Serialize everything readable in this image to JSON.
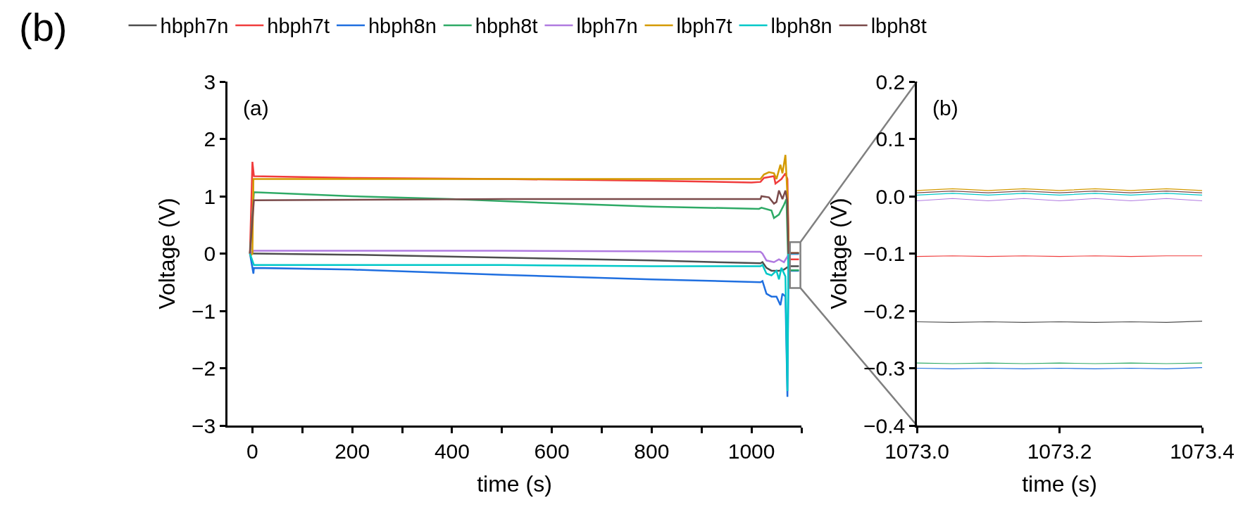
{
  "chart_data": [
    {
      "type": "line",
      "xlabel": "time (s)",
      "ylabel": "Voltage (V)",
      "annotations": [
        "(a)",
        "(b)"
      ],
      "legend": "top",
      "marker": "none",
      "line_style": "solid",
      "xlim": [
        -50,
        1100
      ],
      "xticks": [
        0,
        {
          "value": 100,
          "label": null
        },
        200,
        {
          "value": 300,
          "label": null
        },
        400,
        {
          "value": 500,
          "label": null
        },
        600,
        {
          "value": 700,
          "label": null
        },
        800,
        {
          "value": 900,
          "label": null
        },
        1000,
        {
          "value": 1100,
          "label": null
        }
      ],
      "ylim": [
        -3,
        3
      ],
      "yticks": [
        {
          "value": -3,
          "label": "−3"
        },
        {
          "value": -2,
          "label": "−2"
        },
        {
          "value": -1,
          "label": "−1"
        },
        0,
        1,
        2,
        3
      ],
      "series": [
        {
          "name": "hbph7n",
          "color": "#4d4d4d",
          "x": [
            -5,
            3,
            200,
            500,
            800,
            1018,
            1022,
            1030,
            1040,
            1055,
            1065,
            1075,
            1095
          ],
          "values": [
            0,
            0,
            -0.02,
            -0.07,
            -0.12,
            -0.17,
            -0.15,
            -0.25,
            -0.3,
            -0.3,
            -0.28,
            -0.22,
            -0.22
          ]
        },
        {
          "name": "hbph7t",
          "color": "#f03c3c",
          "x": [
            -5,
            0,
            3,
            200,
            500,
            800,
            1000,
            1018,
            1025,
            1045,
            1048,
            1060,
            1068,
            1072,
            1075,
            1095
          ],
          "values": [
            0,
            1.6,
            1.35,
            1.32,
            1.3,
            1.27,
            1.24,
            1.25,
            1.32,
            1.35,
            1.22,
            1.3,
            1.4,
            1.3,
            -0.1,
            -0.1
          ]
        },
        {
          "name": "hbph8n",
          "color": "#1f6fe0",
          "x": [
            -5,
            2,
            3,
            200,
            500,
            800,
            1018,
            1022,
            1030,
            1040,
            1050,
            1058,
            1062,
            1068,
            1072,
            1074,
            1095
          ],
          "values": [
            0,
            -0.35,
            -0.25,
            -0.28,
            -0.37,
            -0.45,
            -0.5,
            -0.48,
            -0.7,
            -0.75,
            -0.75,
            -0.9,
            -0.7,
            -0.75,
            -2.5,
            -0.3,
            -0.3
          ]
        },
        {
          "name": "hbph8t",
          "color": "#2eaa66",
          "x": [
            -5,
            3,
            200,
            400,
            600,
            800,
            1015,
            1020,
            1040,
            1045,
            1055,
            1065,
            1070,
            1074,
            1095
          ],
          "values": [
            0,
            1.07,
            1.0,
            0.95,
            0.88,
            0.82,
            0.78,
            0.8,
            0.75,
            0.62,
            0.68,
            0.85,
            0.95,
            -0.29,
            -0.29
          ]
        },
        {
          "name": "lbph7n",
          "color": "#b07ae0",
          "x": [
            -5,
            3,
            500,
            1018,
            1022,
            1030,
            1045,
            1055,
            1065,
            1075,
            1095
          ],
          "values": [
            0,
            0.05,
            0.05,
            0.03,
            0,
            -0.12,
            -0.15,
            -0.1,
            -0.15,
            -0.01,
            -0.01
          ]
        },
        {
          "name": "lbph7t",
          "color": "#d49a00",
          "x": [
            -5,
            0,
            2,
            200,
            500,
            800,
            1018,
            1025,
            1035,
            1045,
            1050,
            1058,
            1062,
            1068,
            1072,
            1074,
            1075,
            1095
          ],
          "values": [
            -0.05,
            0,
            1.3,
            1.3,
            1.3,
            1.3,
            1.3,
            1.38,
            1.42,
            1.4,
            1.3,
            1.55,
            1.4,
            1.72,
            1.0,
            0.3,
            0.01,
            0.01
          ]
        },
        {
          "name": "lbph8n",
          "color": "#00c8c8",
          "x": [
            -5,
            3,
            200,
            500,
            800,
            1018,
            1022,
            1030,
            1040,
            1050,
            1055,
            1060,
            1068,
            1072,
            1074,
            1095
          ],
          "values": [
            0,
            -0.2,
            -0.2,
            -0.2,
            -0.22,
            -0.22,
            -0.2,
            -0.35,
            -0.38,
            -0.3,
            -0.45,
            -0.25,
            -0.4,
            -2.4,
            0,
            0
          ]
        },
        {
          "name": "lbph8t",
          "color": "#7a4a4a",
          "x": [
            -5,
            3,
            500,
            1018,
            1020,
            1035,
            1045,
            1050,
            1055,
            1062,
            1068,
            1072,
            1074,
            1095
          ],
          "values": [
            0,
            0.93,
            0.95,
            0.95,
            1.0,
            0.98,
            0.87,
            0.9,
            1.1,
            0.95,
            1.1,
            0.9,
            0.01,
            0.01
          ]
        }
      ]
    },
    {
      "type": "line",
      "xlabel": "time (s)",
      "ylabel": "Voltage (V)",
      "annotations": [
        "(b)"
      ],
      "legend": false,
      "marker": "none",
      "line_style": "solid",
      "xlim": [
        1073.0,
        1073.4
      ],
      "xticks": [
        {
          "value": 1073.0,
          "label": "1073.0"
        },
        {
          "value": 1073.2,
          "label": "1073.2"
        },
        {
          "value": 1073.4,
          "label": "1073.4"
        }
      ],
      "ylim": [
        -0.4,
        0.2
      ],
      "yticks": [
        {
          "value": -0.4,
          "label": "−0.4"
        },
        {
          "value": -0.3,
          "label": "−0.3"
        },
        {
          "value": -0.2,
          "label": "−0.2"
        },
        {
          "value": -0.1,
          "label": "−0.1"
        },
        {
          "value": 0,
          "label": "0.0"
        },
        0.1,
        0.2
      ],
      "x": [
        1073.0,
        1073.05,
        1073.1,
        1073.15,
        1073.2,
        1073.25,
        1073.3,
        1073.35,
        1073.4
      ],
      "series": [
        {
          "color": "#4d4d4d",
          "values": [
            -0.219,
            -0.22,
            -0.219,
            -0.22,
            -0.219,
            -0.22,
            -0.219,
            -0.22,
            -0.218
          ]
        },
        {
          "color": "#f03c3c",
          "values": [
            -0.105,
            -0.104,
            -0.105,
            -0.104,
            -0.105,
            -0.104,
            -0.105,
            -0.104,
            -0.104
          ]
        },
        {
          "color": "#1f6fe0",
          "values": [
            -0.3,
            -0.301,
            -0.3,
            -0.301,
            -0.3,
            -0.301,
            -0.3,
            -0.301,
            -0.299
          ]
        },
        {
          "color": "#2eaa66",
          "values": [
            -0.291,
            -0.292,
            -0.291,
            -0.292,
            -0.291,
            -0.292,
            -0.291,
            -0.292,
            -0.291
          ]
        },
        {
          "color": "#b07ae0",
          "values": [
            -0.008,
            -0.004,
            -0.008,
            -0.004,
            -0.008,
            -0.004,
            -0.008,
            -0.004,
            -0.008
          ]
        },
        {
          "color": "#d49a00",
          "values": [
            0.01,
            0.013,
            0.01,
            0.013,
            0.01,
            0.013,
            0.01,
            0.013,
            0.01
          ]
        },
        {
          "color": "#00c8c8",
          "values": [
            0.002,
            0.005,
            0.002,
            0.005,
            0.002,
            0.005,
            0.002,
            0.005,
            0.002
          ]
        },
        {
          "color": "#7a4a4a",
          "values": [
            0.006,
            0.009,
            0.006,
            0.009,
            0.006,
            0.009,
            0.006,
            0.009,
            0.006
          ]
        }
      ]
    }
  ]
}
